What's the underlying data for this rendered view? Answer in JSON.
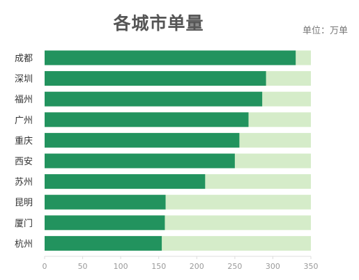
{
  "chart_data": {
    "type": "bar",
    "orientation": "horizontal",
    "title": "各城市单量",
    "unit_label": "单位：万单",
    "categories": [
      "成都",
      "深圳",
      "福州",
      "广州",
      "重庆",
      "西安",
      "苏州",
      "昆明",
      "厦门",
      "杭州"
    ],
    "values": [
      330,
      291,
      286,
      268,
      256,
      250,
      211,
      159,
      158,
      154
    ],
    "xlim": [
      0,
      350
    ],
    "xticks": [
      0,
      50,
      100,
      150,
      200,
      250,
      300,
      350
    ],
    "colors": {
      "bar": "#22935e",
      "track": "#d5ecc9",
      "axis": "#dddddd"
    },
    "grid": false,
    "legend": "none"
  }
}
